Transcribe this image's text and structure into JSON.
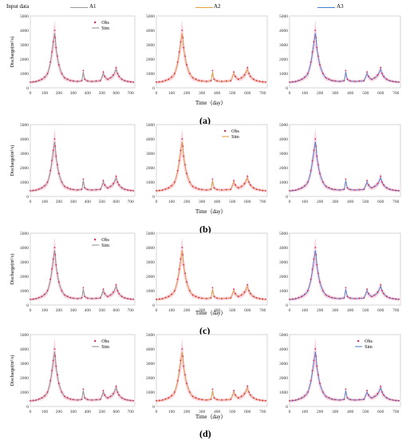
{
  "header": {
    "input_data_label": "Input data",
    "series_labels": [
      "A1",
      "A2",
      "A3"
    ],
    "series_colors": [
      "#9a9a9a",
      "#e8a23a",
      "#3f7fd0"
    ]
  },
  "obs_label": "Obs",
  "sim_label": "Sim",
  "ylabel": "Discharge(m³/s)",
  "xlabel": "Time（day）",
  "captions": [
    "(a)",
    "(b)",
    "(c)",
    "(d)"
  ],
  "colors": {
    "obs": "#d6254a",
    "band": "#f7c9d9",
    "sim_stroke_a1": "#8a8a8a",
    "sim_stroke_a2": "#d9973a",
    "sim_stroke_a3": "#4a78c8"
  },
  "chart_data": {
    "type": "line",
    "xlim": [
      0,
      730
    ],
    "ylim": [
      0,
      5000
    ],
    "xticks": [
      0,
      100,
      200,
      300,
      400,
      500,
      600,
      700
    ],
    "yticks": [
      0,
      1000,
      2000,
      3000,
      4000,
      5000
    ],
    "x": [
      0,
      20,
      40,
      60,
      80,
      100,
      120,
      140,
      150,
      160,
      170,
      175,
      180,
      190,
      200,
      220,
      240,
      260,
      280,
      300,
      330,
      360,
      370,
      380,
      400,
      430,
      460,
      490,
      510,
      520,
      540,
      560,
      580,
      600,
      610,
      620,
      640,
      660,
      680,
      700,
      720
    ],
    "series": [
      {
        "name": "Obs",
        "values": [
          400,
          420,
          450,
          520,
          600,
          750,
          1000,
          1800,
          2500,
          3200,
          4000,
          3500,
          2800,
          2200,
          1600,
          1000,
          700,
          600,
          520,
          480,
          450,
          500,
          1200,
          600,
          480,
          450,
          470,
          500,
          1100,
          800,
          600,
          700,
          900,
          1400,
          1000,
          800,
          600,
          500,
          450,
          420,
          400
        ]
      },
      {
        "name": "Sim",
        "values": [
          380,
          400,
          430,
          500,
          580,
          720,
          950,
          1700,
          2400,
          3100,
          3800,
          3400,
          2700,
          2100,
          1550,
          980,
          680,
          580,
          500,
          470,
          440,
          490,
          1100,
          580,
          470,
          440,
          460,
          490,
          1000,
          760,
          580,
          680,
          850,
          1300,
          950,
          780,
          580,
          490,
          440,
          410,
          390
        ]
      }
    ]
  }
}
